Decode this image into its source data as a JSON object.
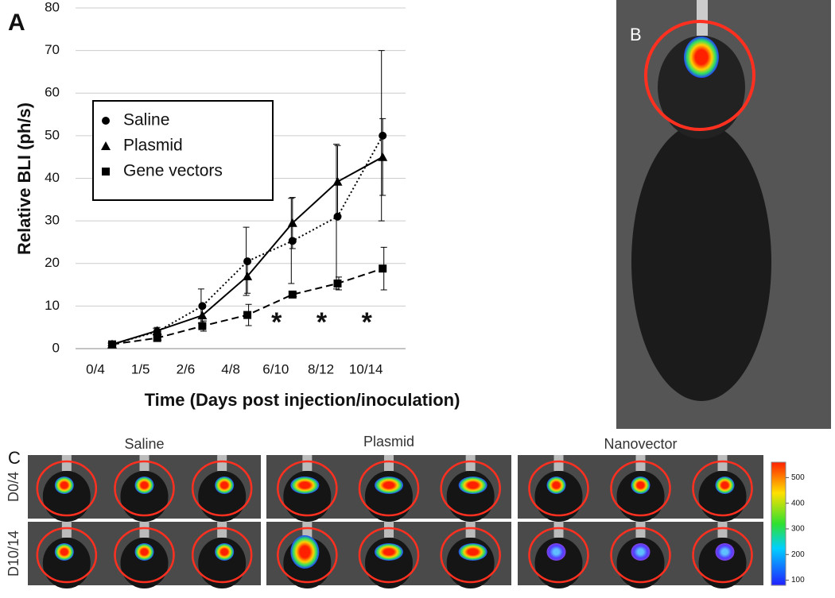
{
  "chart_data": {
    "type": "line",
    "panel_label": "A",
    "xlabel": "Time (Days post injection/inoculation)",
    "ylabel": "Relative BLI (ph/s)",
    "categories": [
      "0/4",
      "1/5",
      "2/6",
      "4/8",
      "6/10",
      "8/12",
      "10/14"
    ],
    "series": [
      {
        "name": "Saline",
        "color": "#000000",
        "marker": "circle",
        "dash": "dotted",
        "values": [
          1,
          4,
          10,
          20.5,
          25.3,
          31,
          50
        ],
        "errors": [
          0.3,
          0.8,
          4,
          8,
          10,
          17,
          20
        ]
      },
      {
        "name": "Plasmid",
        "color": "#000000",
        "marker": "triangle",
        "dash": "solid",
        "values": [
          1,
          4.2,
          7.8,
          17,
          29.5,
          39.2,
          45
        ],
        "errors": [
          0.3,
          0.8,
          2,
          4,
          6,
          8.5,
          9
        ]
      },
      {
        "name": "Gene vectors",
        "color": "#000000",
        "marker": "square",
        "dash": "dashed",
        "values": [
          1,
          2.5,
          5.3,
          7.9,
          12.7,
          15.3,
          18.8
        ],
        "errors": [
          0.3,
          0.5,
          1.2,
          2.5,
          0.5,
          1.5,
          5
        ]
      }
    ],
    "significance": [
      null,
      null,
      null,
      null,
      "*",
      "*",
      "*"
    ],
    "ylim": [
      0,
      80
    ],
    "yticks": [
      0,
      10,
      20,
      30,
      40,
      50,
      60,
      70,
      80
    ],
    "grid": true,
    "legend_position": "upper left"
  },
  "panel_b": {
    "label": "B"
  },
  "panel_c": {
    "label": "C",
    "groups": [
      "Saline",
      "Plasmid",
      "Nanovector"
    ],
    "rows": [
      "D0/4",
      "D10/14"
    ],
    "colorbar_ticks": [
      100,
      200,
      300,
      400,
      500
    ],
    "colorbar_lim": [
      80,
      560
    ]
  }
}
